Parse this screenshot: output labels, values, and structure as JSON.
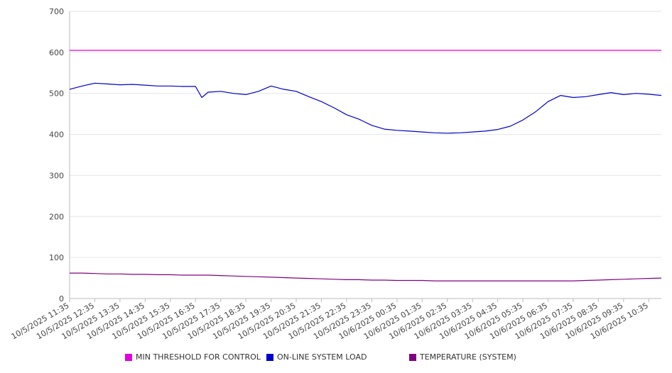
{
  "chart_data": {
    "type": "line",
    "title": "",
    "xlabel": "",
    "ylabel": "",
    "ylim": [
      0,
      700
    ],
    "yticks": [
      0,
      100,
      200,
      300,
      400,
      500,
      600,
      700
    ],
    "grid": true,
    "legend_position": "bottom",
    "x_tick_labels": [
      "10/5/2025 11:35",
      "10/5/2025 12:35",
      "10/5/2025 13:35",
      "10/5/2025 14:35",
      "10/5/2025 15:35",
      "10/5/2025 16:35",
      "10/5/2025 17:35",
      "10/5/2025 18:35",
      "10/5/2025 19:35",
      "10/5/2025 20:35",
      "10/5/2025 21:35",
      "10/5/2025 22:35",
      "10/5/2025 23:35",
      "10/6/2025 00:35",
      "10/6/2025 01:35",
      "10/6/2025 02:35",
      "10/6/2025 03:35",
      "10/6/2025 04:35",
      "10/6/2025 05:35",
      "10/6/2025 06:35",
      "10/6/2025 07:35",
      "10/6/2025 08:35",
      "10/6/2025 09:35",
      "10/6/2025 10:35"
    ],
    "x": [
      "10/5/2025 11:35",
      "10/5/2025 12:05",
      "10/5/2025 12:35",
      "10/5/2025 13:05",
      "10/5/2025 13:35",
      "10/5/2025 14:05",
      "10/5/2025 14:35",
      "10/5/2025 15:05",
      "10/5/2025 15:35",
      "10/5/2025 16:05",
      "10/5/2025 16:35",
      "10/5/2025 16:50",
      "10/5/2025 17:05",
      "10/5/2025 17:35",
      "10/5/2025 18:05",
      "10/5/2025 18:35",
      "10/5/2025 19:05",
      "10/5/2025 19:35",
      "10/5/2025 20:05",
      "10/5/2025 20:35",
      "10/5/2025 21:05",
      "10/5/2025 21:35",
      "10/5/2025 22:05",
      "10/5/2025 22:35",
      "10/5/2025 23:05",
      "10/5/2025 23:35",
      "10/6/2025 00:05",
      "10/6/2025 00:35",
      "10/6/2025 01:05",
      "10/6/2025 01:35",
      "10/6/2025 02:05",
      "10/6/2025 02:35",
      "10/6/2025 03:05",
      "10/6/2025 03:35",
      "10/6/2025 04:05",
      "10/6/2025 04:35",
      "10/6/2025 05:05",
      "10/6/2025 05:35",
      "10/6/2025 06:05",
      "10/6/2025 06:35",
      "10/6/2025 07:05",
      "10/6/2025 07:35",
      "10/6/2025 08:05",
      "10/6/2025 08:35",
      "10/6/2025 09:05",
      "10/6/2025 09:35",
      "10/6/2025 10:05",
      "10/6/2025 10:35",
      "10/6/2025 11:05"
    ],
    "series": [
      {
        "name": "MIN THRESHOLD FOR CONTROL",
        "color": "#e000e0",
        "values": [
          605,
          605,
          605,
          605,
          605,
          605,
          605,
          605,
          605,
          605,
          605,
          605,
          605,
          605,
          605,
          605,
          605,
          605,
          605,
          605,
          605,
          605,
          605,
          605,
          605,
          605,
          605,
          605,
          605,
          605,
          605,
          605,
          605,
          605,
          605,
          605,
          605,
          605,
          605,
          605,
          605,
          605,
          605,
          605,
          605,
          605,
          605,
          605,
          605
        ]
      },
      {
        "name": "ON-LINE SYSTEM LOAD",
        "color": "#0000cc",
        "values": [
          510,
          518,
          525,
          523,
          521,
          522,
          520,
          518,
          518,
          517,
          517,
          490,
          503,
          505,
          500,
          497,
          505,
          518,
          510,
          505,
          492,
          480,
          465,
          448,
          437,
          422,
          413,
          410,
          408,
          406,
          404,
          403,
          404,
          406,
          408,
          412,
          420,
          435,
          455,
          480,
          495,
          490,
          492,
          497,
          502,
          497,
          500,
          498,
          495
        ]
      },
      {
        "name": "TEMPERATURE (SYSTEM)",
        "color": "#800080",
        "values": [
          62,
          62,
          61,
          60,
          60,
          59,
          59,
          58,
          58,
          57,
          57,
          57,
          57,
          56,
          55,
          54,
          53,
          52,
          51,
          50,
          49,
          48,
          47,
          46,
          46,
          45,
          45,
          44,
          44,
          44,
          43,
          43,
          43,
          43,
          43,
          43,
          43,
          43,
          43,
          43,
          43,
          43,
          44,
          45,
          46,
          47,
          48,
          49,
          50
        ]
      }
    ]
  }
}
